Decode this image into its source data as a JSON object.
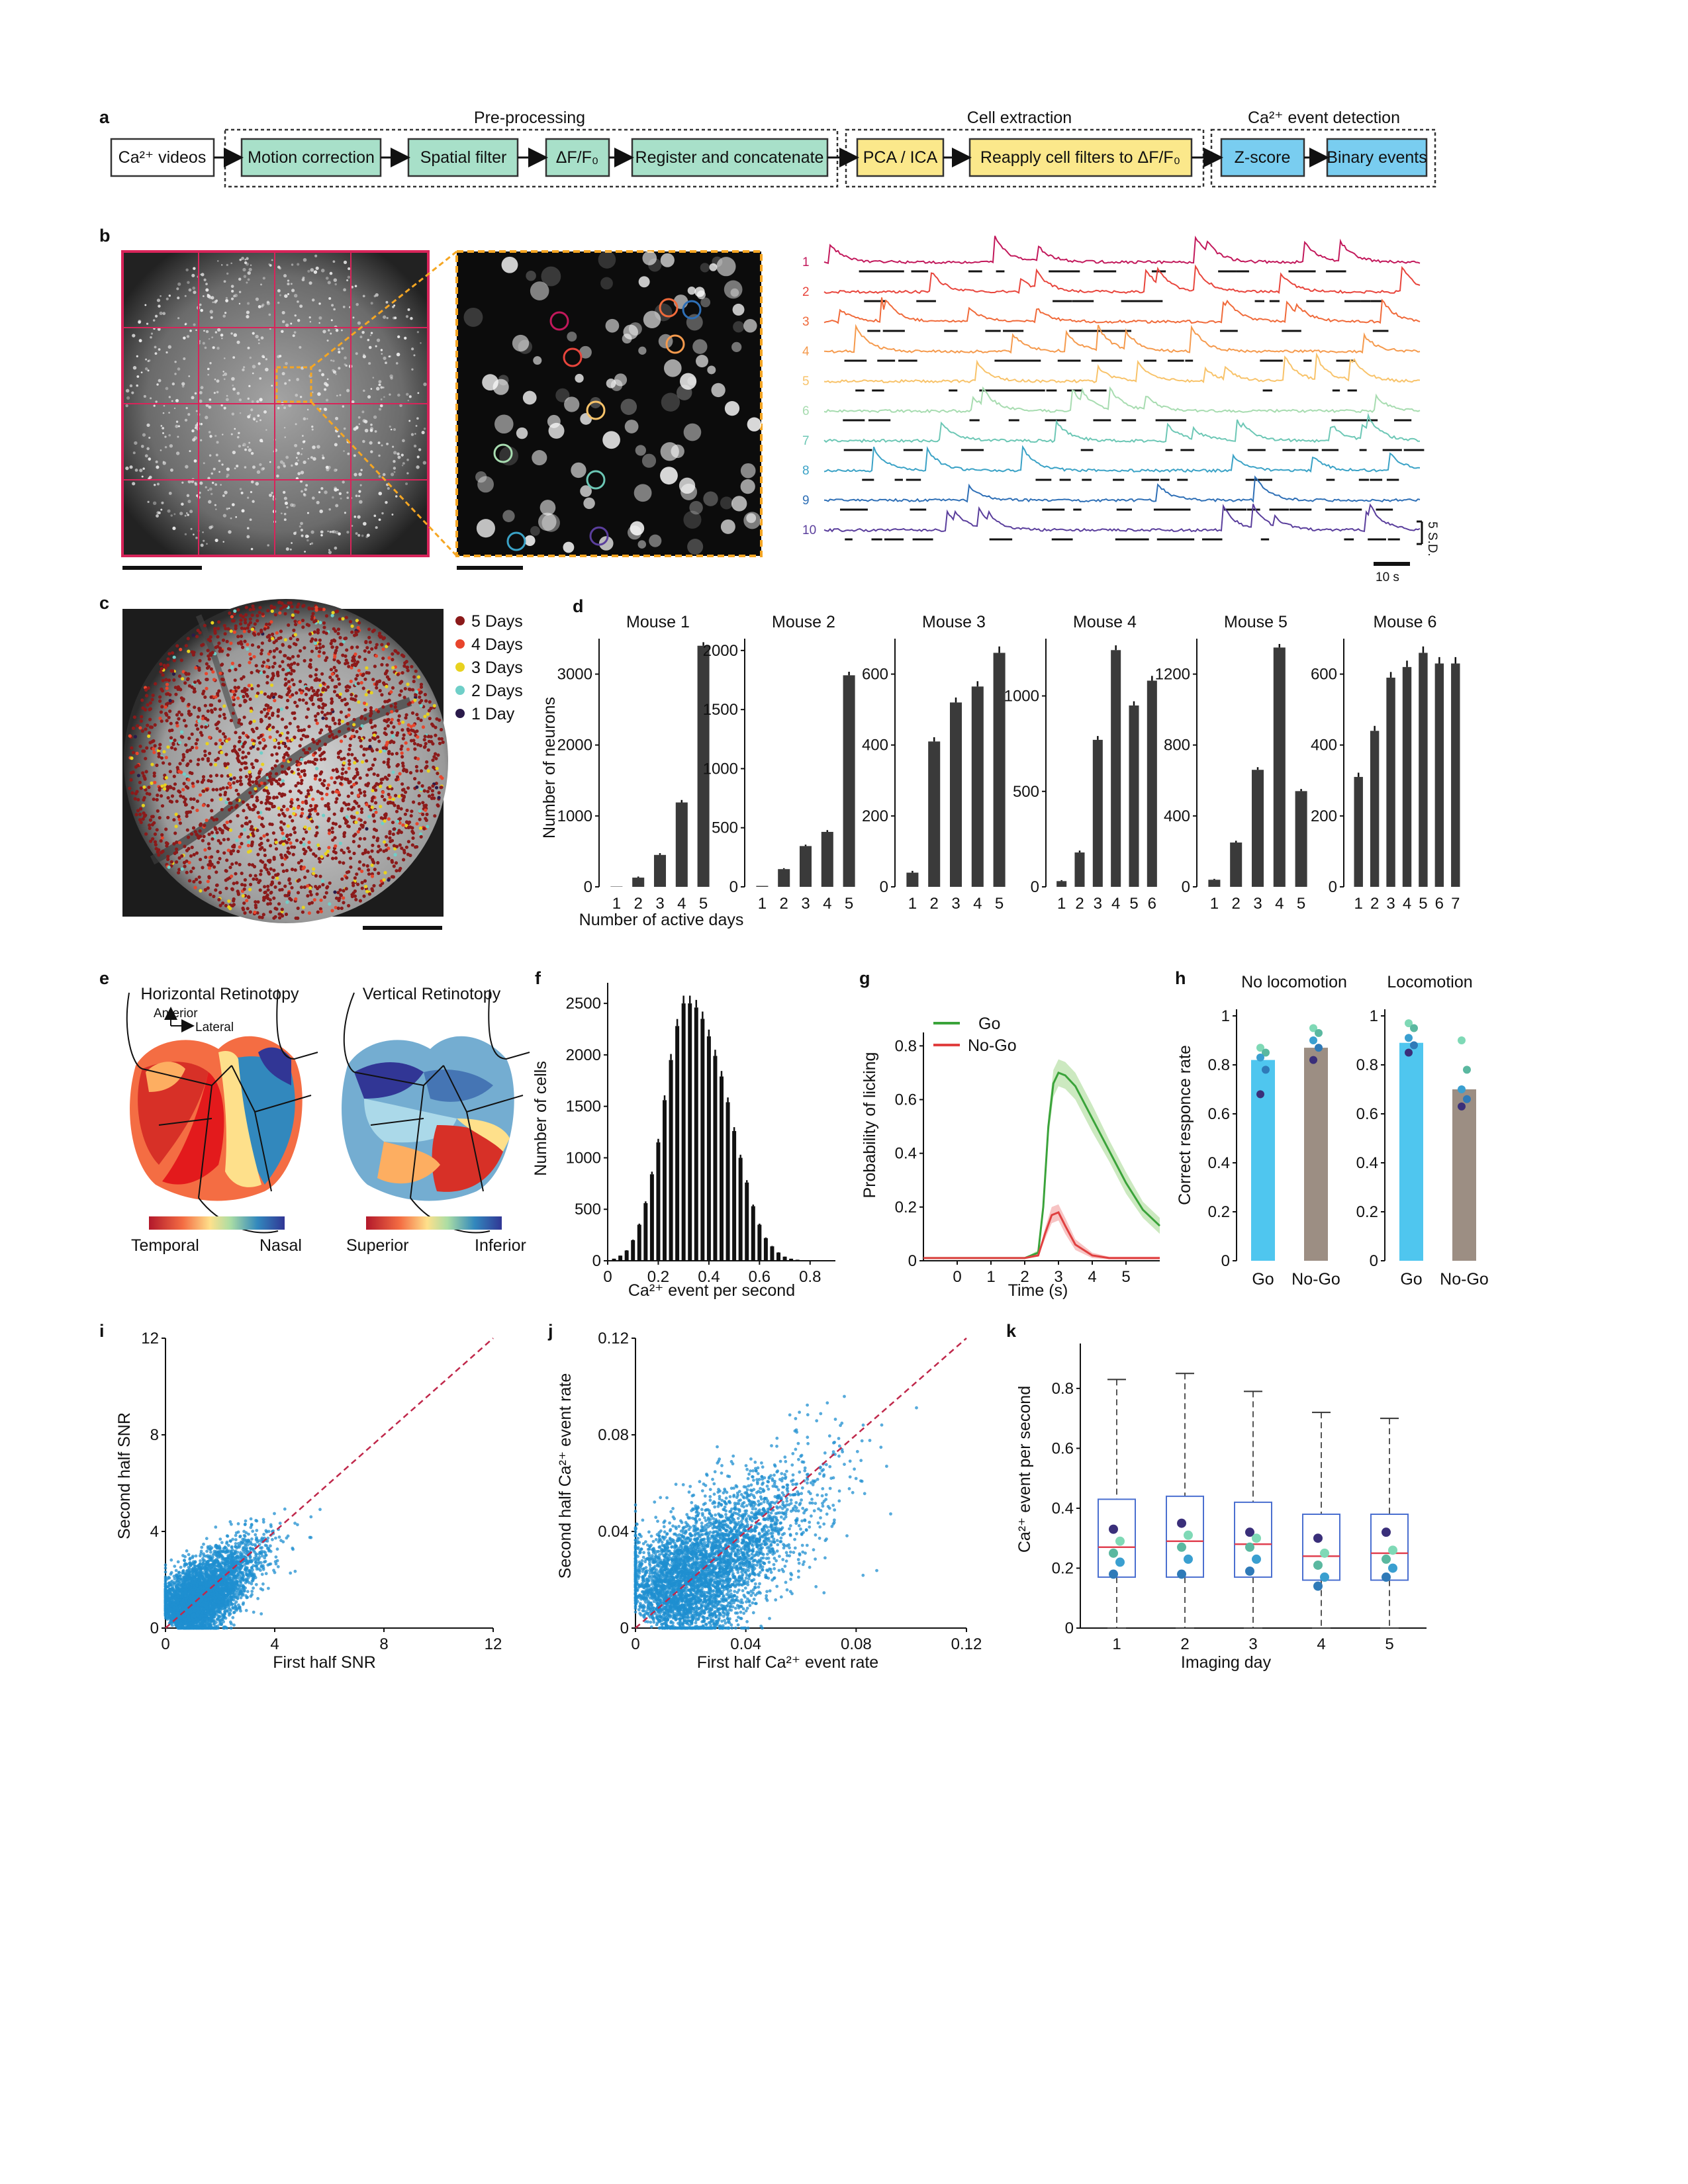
{
  "panel_labels": {
    "a": "a",
    "b": "b",
    "c": "c",
    "d": "d",
    "e": "e",
    "f": "f",
    "g": "g",
    "h": "h",
    "i": "i",
    "j": "j",
    "k": "k"
  },
  "flow": {
    "sections": [
      "Pre-processing",
      "Cell extraction",
      "Ca²⁺ event detection"
    ],
    "boxes": {
      "input": "Ca²⁺ videos",
      "motion": "Motion correction",
      "spatial": "Spatial filter",
      "dff": "ΔF/F₀",
      "register": "Register and concatenate",
      "pca": "PCA / ICA",
      "reapply": "Reapply cell filters to ΔF/F₀",
      "zscore": "Z-score",
      "binary": "Binary events"
    }
  },
  "panel_b": {
    "trace_numbers": [
      "1",
      "2",
      "3",
      "4",
      "5",
      "6",
      "7",
      "8",
      "9",
      "10"
    ],
    "trace_colors": [
      "#c2185b",
      "#e8453c",
      "#f06a3a",
      "#f59a4d",
      "#f8c36a",
      "#a7dcb0",
      "#6cc7b5",
      "#3aa2c6",
      "#2e6fb6",
      "#5a3e9c"
    ],
    "scale_y": "5 S.D.",
    "scale_x": "10 s"
  },
  "panel_c": {
    "legend": [
      {
        "label": "5 Days",
        "color": "#8b1a1a"
      },
      {
        "label": "4 Days",
        "color": "#e8452c"
      },
      {
        "label": "3 Days",
        "color": "#e8d21f"
      },
      {
        "label": "2 Days",
        "color": "#6fcfc8"
      },
      {
        "label": "1 Day",
        "color": "#2a1a4a"
      }
    ]
  },
  "panel_e": {
    "titles": [
      "Horizontal Retinotopy",
      "Vertical Retinotopy"
    ],
    "compass": {
      "anterior": "Anterior",
      "lateral": "Lateral"
    },
    "cbar_h": [
      "Temporal",
      "Nasal"
    ],
    "cbar_v": [
      "Superior",
      "Inferior"
    ]
  },
  "chart_data": [
    {
      "id": "d",
      "type": "bar",
      "ylabel": "Number of neurons",
      "xlabel": "Number of active days",
      "mice": [
        {
          "title": "Mouse 1",
          "categories": [
            "1",
            "2",
            "3",
            "4",
            "5"
          ],
          "values": [
            5,
            130,
            450,
            1190,
            3400
          ],
          "err": [
            0,
            15,
            25,
            35,
            50
          ],
          "ylim": [
            0,
            3500
          ],
          "yticks": [
            0,
            1000,
            2000,
            3000
          ]
        },
        {
          "title": "Mouse 2",
          "categories": [
            "1",
            "2",
            "3",
            "4",
            "5"
          ],
          "values": [
            8,
            150,
            345,
            465,
            1790
          ],
          "err": [
            0,
            8,
            12,
            15,
            30
          ],
          "ylim": [
            0,
            2100
          ],
          "yticks": [
            0,
            500,
            1000,
            1500,
            2000
          ]
        },
        {
          "title": "Mouse 3",
          "categories": [
            "1",
            "2",
            "3",
            "4",
            "5"
          ],
          "values": [
            40,
            410,
            520,
            565,
            660
          ],
          "err": [
            5,
            12,
            14,
            15,
            18
          ],
          "ylim": [
            0,
            700
          ],
          "yticks": [
            0,
            200,
            400,
            600
          ]
        },
        {
          "title": "Mouse 4",
          "categories": [
            "1",
            "2",
            "3",
            "4",
            "5",
            "6"
          ],
          "values": [
            30,
            180,
            770,
            1240,
            950,
            1080
          ],
          "err": [
            5,
            10,
            20,
            25,
            22,
            25
          ],
          "ylim": [
            0,
            1300
          ],
          "yticks": [
            0,
            500,
            1000
          ]
        },
        {
          "title": "Mouse 5",
          "categories": [
            "1",
            "2",
            "3",
            "4",
            "5"
          ],
          "values": [
            40,
            250,
            660,
            1350,
            540
          ],
          "err": [
            5,
            10,
            15,
            20,
            12
          ],
          "ylim": [
            0,
            1400
          ],
          "yticks": [
            0,
            400,
            800,
            1200
          ]
        },
        {
          "title": "Mouse 6",
          "categories": [
            "1",
            "2",
            "3",
            "4",
            "5",
            "6",
            "7"
          ],
          "values": [
            310,
            440,
            590,
            620,
            660,
            630,
            630
          ],
          "err": [
            12,
            14,
            16,
            18,
            18,
            18,
            18
          ],
          "ylim": [
            0,
            700
          ],
          "yticks": [
            0,
            200,
            400,
            600
          ]
        }
      ]
    },
    {
      "id": "f",
      "type": "bar",
      "xlabel": "Ca²⁺ event per second",
      "ylabel": "Number of cells",
      "x": [
        0.0,
        0.025,
        0.05,
        0.075,
        0.1,
        0.125,
        0.15,
        0.175,
        0.2,
        0.225,
        0.25,
        0.275,
        0.3,
        0.325,
        0.35,
        0.375,
        0.4,
        0.425,
        0.45,
        0.475,
        0.5,
        0.525,
        0.55,
        0.575,
        0.6,
        0.625,
        0.65,
        0.675,
        0.7,
        0.725,
        0.75,
        0.775,
        0.8,
        0.825,
        0.85
      ],
      "values": [
        0,
        20,
        50,
        100,
        200,
        350,
        560,
        840,
        1150,
        1560,
        1950,
        2280,
        2500,
        2500,
        2460,
        2350,
        2180,
        1990,
        1790,
        1540,
        1260,
        1000,
        760,
        530,
        350,
        220,
        140,
        80,
        40,
        20,
        10,
        5,
        2,
        1,
        0
      ],
      "xlim": [
        0,
        0.9
      ],
      "xticks": [
        0,
        0.2,
        0.4,
        0.6,
        0.8
      ],
      "ylim": [
        0,
        2700
      ],
      "yticks": [
        0,
        500,
        1000,
        1500,
        2000,
        2500
      ]
    },
    {
      "id": "g",
      "type": "line",
      "xlabel": "Time (s)",
      "ylabel": "Probability of licking",
      "xlim": [
        -1,
        6
      ],
      "xticks": [
        0,
        1,
        2,
        3,
        4,
        5
      ],
      "ylim": [
        0,
        0.85
      ],
      "yticks": [
        0,
        0.2,
        0.4,
        0.6,
        0.8
      ],
      "series": [
        {
          "name": "Go",
          "color": "#3aa33a",
          "band": "#bfe3b0",
          "x": [
            -1,
            0,
            1,
            2,
            2.4,
            2.55,
            2.7,
            2.85,
            3.0,
            3.2,
            3.5,
            4.0,
            4.5,
            5.0,
            5.5,
            6.0
          ],
          "values": [
            0.01,
            0.01,
            0.01,
            0.01,
            0.03,
            0.2,
            0.5,
            0.66,
            0.7,
            0.69,
            0.65,
            0.53,
            0.41,
            0.29,
            0.19,
            0.13
          ],
          "spread": [
            0,
            0,
            0,
            0,
            0.01,
            0.03,
            0.04,
            0.05,
            0.05,
            0.05,
            0.05,
            0.05,
            0.04,
            0.04,
            0.03,
            0.03
          ]
        },
        {
          "name": "No-Go",
          "color": "#e04040",
          "band": "#f5b5b5",
          "x": [
            -1,
            0,
            1,
            2,
            2.4,
            2.6,
            2.8,
            3.0,
            3.2,
            3.5,
            4.0,
            4.5,
            5.0,
            6.0
          ],
          "values": [
            0.01,
            0.01,
            0.01,
            0.01,
            0.02,
            0.1,
            0.17,
            0.18,
            0.13,
            0.06,
            0.02,
            0.01,
            0.01,
            0.01
          ],
          "spread": [
            0,
            0,
            0,
            0,
            0.005,
            0.02,
            0.03,
            0.03,
            0.03,
            0.02,
            0.01,
            0.005,
            0.005,
            0.005
          ]
        }
      ]
    },
    {
      "id": "h",
      "type": "bar",
      "ylabel": "Correct responce rate",
      "groups": [
        {
          "title": "No locomotion",
          "categories": [
            "Go",
            "No-Go"
          ],
          "values": [
            0.82,
            0.87
          ],
          "colors": [
            "#4fc6ef",
            "#9c8e83"
          ],
          "points": [
            [
              0.87,
              0.85,
              0.83,
              0.78,
              0.68
            ],
            [
              0.95,
              0.93,
              0.9,
              0.87,
              0.82
            ]
          ]
        },
        {
          "title": "Locomotion",
          "categories": [
            "Go",
            "No-Go"
          ],
          "values": [
            0.89,
            0.7
          ],
          "colors": [
            "#4fc6ef",
            "#9c8e83"
          ],
          "points": [
            [
              0.97,
              0.95,
              0.91,
              0.88,
              0.85
            ],
            [
              0.9,
              0.78,
              0.7,
              0.66,
              0.63
            ]
          ]
        }
      ],
      "ylim": [
        0,
        1
      ],
      "yticks": [
        0,
        0.2,
        0.4,
        0.6,
        0.8,
        1
      ]
    },
    {
      "id": "i",
      "type": "scatter",
      "xlabel": "First half SNR",
      "ylabel": "Second half SNR",
      "xlim": [
        0,
        12
      ],
      "ylim": [
        0,
        12
      ],
      "xticks": [
        0,
        4,
        8,
        12
      ],
      "yticks": [
        0,
        4,
        8,
        12
      ],
      "cloud": {
        "center": [
          1.6,
          1.6
        ],
        "spread": 1.5,
        "max": 6.5
      }
    },
    {
      "id": "j",
      "type": "scatter",
      "xlabel": "First half Ca²⁺ event rate",
      "ylabel": "Second half Ca²⁺ event rate",
      "xlim": [
        0,
        0.12
      ],
      "ylim": [
        0,
        0.12
      ],
      "xticks": [
        0,
        0.04,
        0.08,
        0.12
      ],
      "yticks": [
        0,
        0.04,
        0.08,
        0.12
      ],
      "cloud": {
        "center": [
          0.035,
          0.035
        ],
        "spread": 0.028,
        "max": 0.11
      }
    },
    {
      "id": "k",
      "type": "box",
      "xlabel": "Imaging day",
      "ylabel": "Ca²⁺ event per second",
      "categories": [
        "1",
        "2",
        "3",
        "4",
        "5"
      ],
      "boxes": [
        {
          "min": 0.0,
          "q1": 0.17,
          "median": 0.27,
          "q3": 0.43,
          "max": 0.83,
          "points": [
            0.33,
            0.29,
            0.25,
            0.22,
            0.18
          ]
        },
        {
          "min": 0.0,
          "q1": 0.17,
          "median": 0.29,
          "q3": 0.44,
          "max": 0.85,
          "points": [
            0.35,
            0.31,
            0.27,
            0.23,
            0.18
          ]
        },
        {
          "min": 0.0,
          "q1": 0.17,
          "median": 0.28,
          "q3": 0.42,
          "max": 0.79,
          "points": [
            0.32,
            0.3,
            0.27,
            0.23,
            0.19
          ]
        },
        {
          "min": 0.0,
          "q1": 0.16,
          "median": 0.24,
          "q3": 0.38,
          "max": 0.72,
          "points": [
            0.3,
            0.25,
            0.21,
            0.17,
            0.14
          ]
        },
        {
          "min": 0.0,
          "q1": 0.16,
          "median": 0.25,
          "q3": 0.38,
          "max": 0.7,
          "points": [
            0.32,
            0.26,
            0.23,
            0.2,
            0.17
          ]
        }
      ],
      "ylim": [
        0,
        0.95
      ],
      "yticks": [
        0,
        0.2,
        0.4,
        0.6,
        0.8
      ]
    }
  ]
}
